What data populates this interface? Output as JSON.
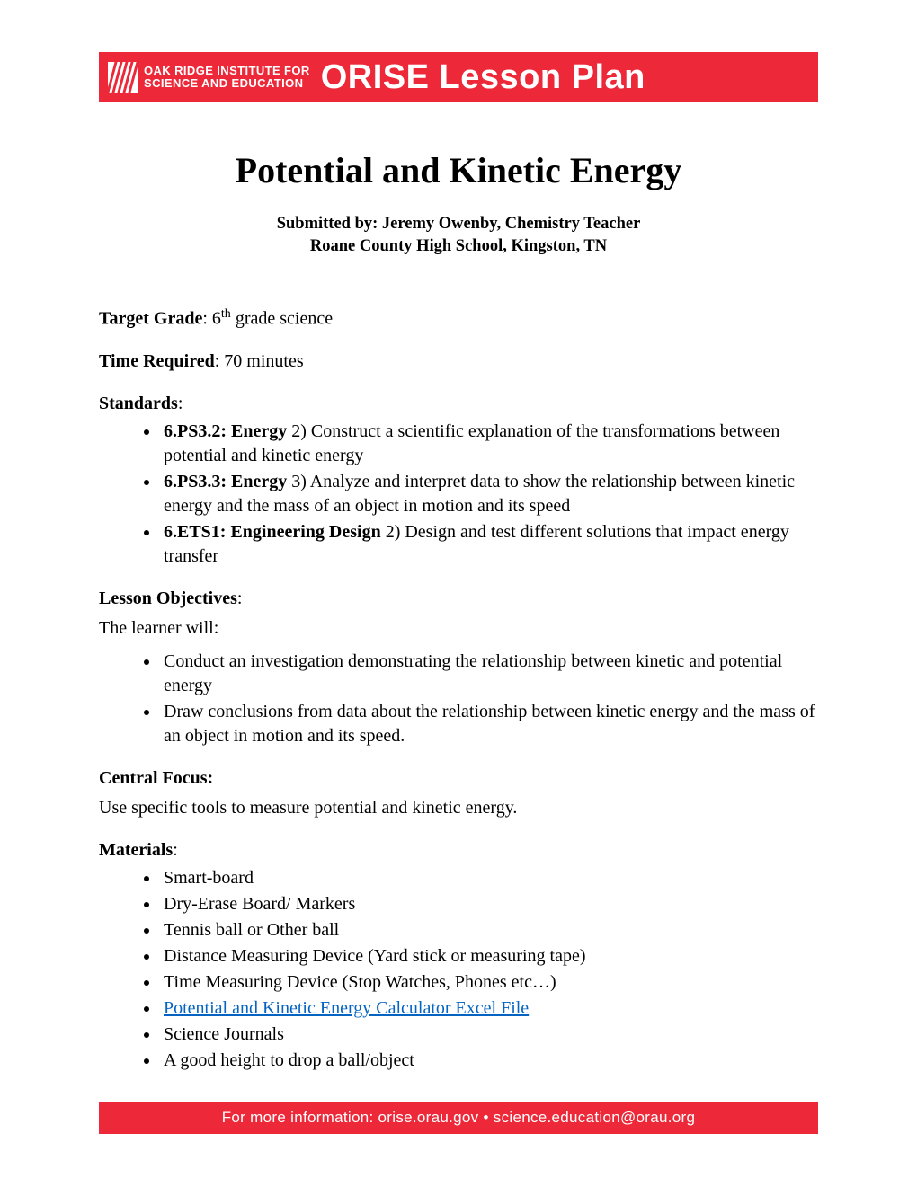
{
  "colors": {
    "banner_bg": "#ed2939",
    "banner_fg": "#ffffff",
    "body_fg": "#000000",
    "link": "#0563c1",
    "page_bg": "#ffffff"
  },
  "header": {
    "institute_line1": "OAK RIDGE INSTITUTE FOR",
    "institute_line2": "SCIENCE AND EDUCATION",
    "banner_title": "ORISE Lesson Plan"
  },
  "title": "Potential and Kinetic Energy",
  "byline": {
    "line1": "Submitted by: Jeremy Owenby, Chemistry Teacher",
    "line2": "Roane County High School, Kingston, TN"
  },
  "target_grade": {
    "label": "Target Grade",
    "value_prefix": ": 6",
    "value_sup": "th",
    "value_suffix": " grade science"
  },
  "time_required": {
    "label": "Time Required",
    "value": ": 70 minutes"
  },
  "standards": {
    "label": "Standards",
    "items": [
      {
        "code": "6.PS3.2: Energy",
        "text": " 2) Construct a scientific explanation of the transformations between potential and kinetic energy"
      },
      {
        "code": "6.PS3.3: Energy",
        "text": "  3) Analyze and interpret data to show the relationship between kinetic energy and the mass of an object in motion and its speed"
      },
      {
        "code": "6.ETS1: Engineering Design",
        "text": " 2) Design and test different solutions that impact energy transfer"
      }
    ]
  },
  "objectives": {
    "label": "Lesson Objectives",
    "intro": "The learner will:",
    "items": [
      "Conduct an investigation demonstrating the relationship  between kinetic and potential energy",
      "Draw conclusions from data about the relationship between kinetic energy and the mass of an object in motion and its speed."
    ]
  },
  "central_focus": {
    "label": "Central Focus:",
    "text": "Use specific tools to measure potential and kinetic energy."
  },
  "materials": {
    "label": "Materials",
    "items": [
      {
        "text": "Smart-board",
        "link": false
      },
      {
        "text": "Dry-Erase Board/ Markers",
        "link": false
      },
      {
        "text": "Tennis ball or Other ball",
        "link": false
      },
      {
        "text": "Distance Measuring Device (Yard stick or measuring tape)",
        "link": false
      },
      {
        "text": "Time Measuring Device (Stop Watches, Phones etc…)",
        "link": false
      },
      {
        "text": "Potential and Kinetic Energy Calculator Excel File",
        "link": true
      },
      {
        "text": "Science Journals",
        "link": false
      },
      {
        "text": "A good height to drop a ball/object",
        "link": false
      }
    ]
  },
  "footer": "For more information:  orise.orau.gov  •  science.education@orau.org"
}
